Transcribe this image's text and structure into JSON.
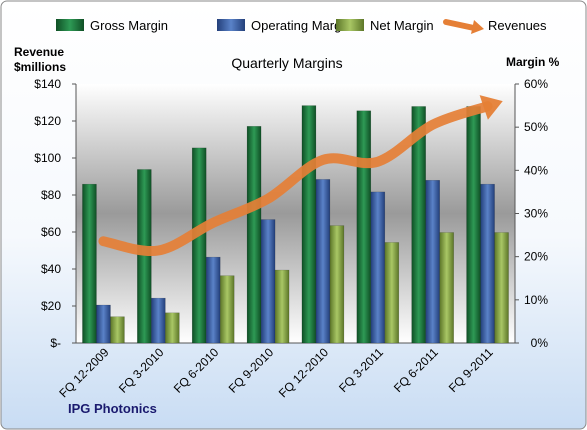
{
  "chart_data": {
    "type": "bar",
    "title": "Quarterly Margins",
    "footer": "IPG Photonics",
    "left_axis_title_line1": "Revenue",
    "left_axis_title_line2": "$millions",
    "right_axis_title": "Margin %",
    "categories": [
      "FQ 12-2009",
      "FQ 3-2010",
      "FQ 6-2010",
      "FQ 9-2010",
      "FQ 12-2010",
      "FQ 3-2011",
      "FQ 6-2011",
      "FQ 9-2011"
    ],
    "left_ylim": [
      0,
      140
    ],
    "right_ylim": [
      0,
      60
    ],
    "left_ticks": [
      "$-",
      "$20",
      "$40",
      "$60",
      "$80",
      "$100",
      "$120",
      "$140"
    ],
    "right_ticks": [
      "0%",
      "10%",
      "20%",
      "30%",
      "40%",
      "50%",
      "60%"
    ],
    "legend_position": "top",
    "grid": false,
    "series": [
      {
        "name": "Gross Margin",
        "axis": "right",
        "kind": "bar",
        "color": "#1f7a3f",
        "values": [
          36.8,
          40.2,
          45.2,
          50.2,
          55.0,
          53.8,
          54.8,
          54.8
        ]
      },
      {
        "name": "Operating Margin",
        "axis": "right",
        "kind": "bar",
        "color": "#3d62a8",
        "values": [
          8.8,
          10.4,
          19.9,
          28.6,
          37.9,
          35.0,
          37.7,
          36.8
        ]
      },
      {
        "name": "Net Margin",
        "axis": "right",
        "kind": "bar",
        "color": "#8aa84a",
        "values": [
          6.1,
          7.0,
          15.6,
          16.9,
          27.2,
          23.3,
          25.6,
          25.6
        ]
      },
      {
        "name": "Revenues",
        "axis": "left",
        "kind": "line",
        "color": "#e57f36",
        "values": [
          55,
          50,
          65,
          78,
          99,
          98,
          118,
          128
        ]
      }
    ]
  }
}
